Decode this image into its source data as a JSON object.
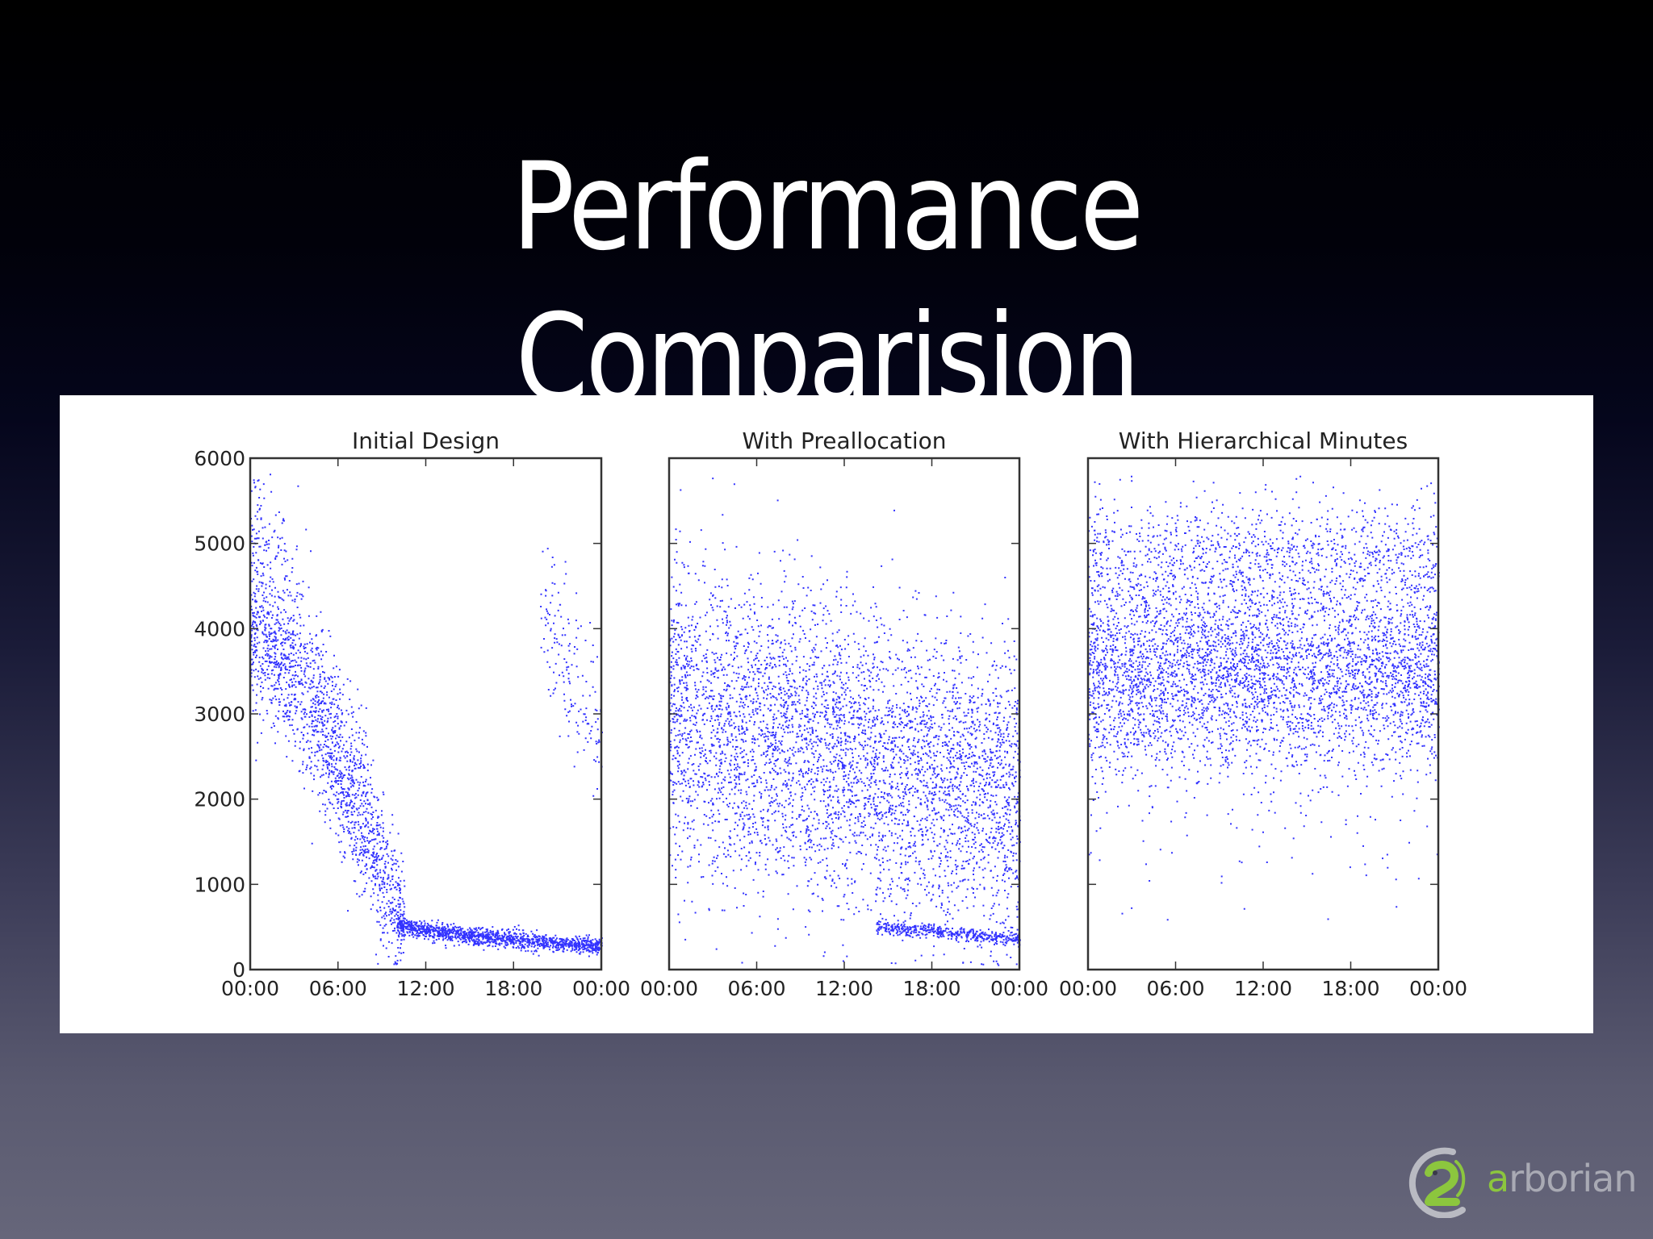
{
  "slide": {
    "title_line1": "Performance",
    "title_line2": "Comparision"
  },
  "logo": {
    "name": "arborian",
    "first_letter": "a",
    "rest": "rborian",
    "accent_color": "#8cc63e",
    "ring_color": "#b9bac2",
    "text_color": "#a9aab4"
  },
  "colors": {
    "point": "#0000ff",
    "axes": "#333333",
    "panel_bg": "#ffffff"
  },
  "chart_data": [
    {
      "type": "scatter",
      "title": "Initial Design",
      "xlabel": "",
      "ylabel": "",
      "x_ticks": [
        "00:00",
        "06:00",
        "12:00",
        "18:00",
        "00:00"
      ],
      "y_ticks": [
        "0",
        "1000",
        "2000",
        "3000",
        "4000",
        "5000",
        "6000"
      ],
      "xlim": [
        0,
        24
      ],
      "ylim": [
        0,
        6000
      ],
      "show_y_tick_labels": true,
      "description": "Steep decay from ~4000-5700 at 00:00 down to ~300 by 12:00, flat ~250-350 through 24:00; separate sparse cluster ~2500-5100 around 20:00-24:00",
      "bands": [
        {
          "x0": 0,
          "x1": 10.5,
          "y0": 4000,
          "y1": 500,
          "spread": 450,
          "n": 1500,
          "curve": 1.3
        },
        {
          "x0": 0,
          "x1": 8,
          "y0": 5400,
          "y1": 2200,
          "spread": 500,
          "n": 350,
          "curve": 1.0
        },
        {
          "x0": 10,
          "x1": 24,
          "y0": 550,
          "y1": 280,
          "spread": 55,
          "n": 1300,
          "curve": 0.6
        },
        {
          "x0": 19.8,
          "x1": 24,
          "y0": 4200,
          "y1": 2700,
          "spread": 550,
          "n": 160,
          "curve": 1.0
        }
      ],
      "sample_points": [
        {
          "x": 0,
          "y": 5700
        },
        {
          "x": 2,
          "y": 3600
        },
        {
          "x": 4,
          "y": 2700
        },
        {
          "x": 6,
          "y": 2000
        },
        {
          "x": 8,
          "y": 1300
        },
        {
          "x": 10,
          "y": 600
        },
        {
          "x": 12,
          "y": 420
        },
        {
          "x": 18,
          "y": 330
        },
        {
          "x": 24,
          "y": 280
        },
        {
          "x": 20,
          "y": 5100
        },
        {
          "x": 21,
          "y": 3500
        },
        {
          "x": 23,
          "y": 2800
        }
      ]
    },
    {
      "type": "scatter",
      "title": "With Preallocation",
      "xlabel": "",
      "ylabel": "",
      "x_ticks": [
        "00:00",
        "06:00",
        "12:00",
        "18:00",
        "00:00"
      ],
      "y_ticks": [
        "0",
        "1000",
        "2000",
        "3000",
        "4000",
        "5000",
        "6000"
      ],
      "xlim": [
        0,
        24
      ],
      "ylim": [
        0,
        6000
      ],
      "show_y_tick_labels": false,
      "description": "Broad cloud centered ~3300 at 00:00 gently declining to ~2300 at 24:00, wide spread 500-5000; thin dense line ~500 falling to ~350 from 14:00 to 24:00",
      "bands": [
        {
          "x0": 0,
          "x1": 24,
          "y0": 3300,
          "y1": 2300,
          "spread": 800,
          "n": 3400,
          "curve": 1.0
        },
        {
          "x0": 0,
          "x1": 24,
          "y0": 2200,
          "y1": 1200,
          "spread": 700,
          "n": 1200,
          "curve": 1.0
        },
        {
          "x0": 14,
          "x1": 24,
          "y0": 520,
          "y1": 360,
          "spread": 40,
          "n": 450,
          "curve": 1.0
        }
      ],
      "sample_points": [
        {
          "x": 0,
          "y": 3300
        },
        {
          "x": 6,
          "y": 3000
        },
        {
          "x": 12,
          "y": 2800
        },
        {
          "x": 18,
          "y": 2500
        },
        {
          "x": 24,
          "y": 2300
        },
        {
          "x": 16,
          "y": 480
        },
        {
          "x": 24,
          "y": 360
        },
        {
          "x": 2,
          "y": 5500
        }
      ]
    },
    {
      "type": "scatter",
      "title": "With Hierarchical Minutes",
      "xlabel": "",
      "ylabel": "",
      "x_ticks": [
        "00:00",
        "06:00",
        "12:00",
        "18:00",
        "00:00"
      ],
      "y_ticks": [
        "0",
        "1000",
        "2000",
        "3000",
        "4000",
        "5000",
        "6000"
      ],
      "xlim": [
        0,
        24
      ],
      "ylim": [
        0,
        6000
      ],
      "show_y_tick_labels": false,
      "description": "Flat horizontal band roughly 2000-5500 centered ~3500 across the whole day, with sparse outliers down to ~500",
      "bands": [
        {
          "x0": 0,
          "x1": 24,
          "y0": 3500,
          "y1": 3500,
          "spread": 650,
          "n": 4200,
          "curve": 1.0
        },
        {
          "x0": 0,
          "x1": 24,
          "y0": 4900,
          "y1": 4900,
          "spread": 350,
          "n": 900,
          "curve": 1.0
        },
        {
          "x0": 0,
          "x1": 24,
          "y0": 1500,
          "y1": 1500,
          "spread": 500,
          "n": 60,
          "curve": 1.0
        }
      ],
      "sample_points": [
        {
          "x": 0,
          "y": 3500
        },
        {
          "x": 6,
          "y": 3600
        },
        {
          "x": 12,
          "y": 3500
        },
        {
          "x": 18,
          "y": 3400
        },
        {
          "x": 24,
          "y": 3400
        },
        {
          "x": 12,
          "y": 5500
        },
        {
          "x": 14,
          "y": 450
        }
      ]
    }
  ]
}
